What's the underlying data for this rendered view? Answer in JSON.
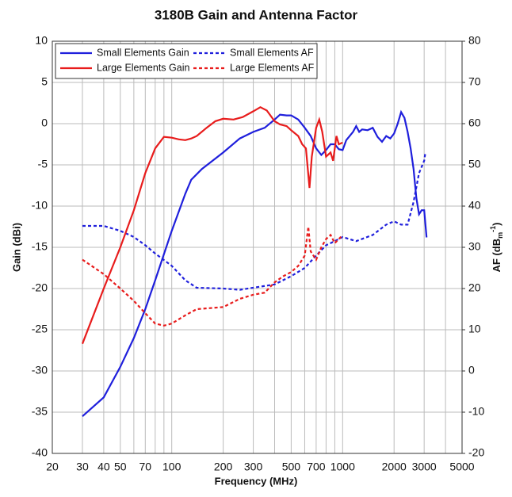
{
  "chart_data": {
    "type": "line",
    "title": "3180B Gain and Antenna Factor",
    "xlabel": "Frequency (MHz)",
    "ylabel": "Gain (dBi)",
    "y2label": {
      "text": "AF (dB",
      "sub": "m",
      "sup": "-1",
      "end": ")"
    },
    "xscale": "log",
    "xlim": [
      20,
      5000
    ],
    "xticks": [
      20,
      30,
      40,
      50,
      70,
      100,
      200,
      300,
      500,
      700,
      1000,
      2000,
      3000,
      5000
    ],
    "xminor_ticks": [
      60,
      80,
      90,
      400,
      600,
      800,
      900,
      4000
    ],
    "ylim": [
      -40,
      10
    ],
    "yticks": [
      -40,
      -35,
      -30,
      -25,
      -20,
      -15,
      -10,
      -5,
      0,
      5,
      10
    ],
    "y2lim": [
      -20,
      80
    ],
    "y2ticks": [
      -20,
      -10,
      0,
      10,
      20,
      30,
      40,
      50,
      60,
      70,
      80
    ],
    "grid": true,
    "legend": "upper left",
    "series": [
      {
        "name": "Small Elements Gain",
        "color": "#1f1fdc",
        "dash": false,
        "axis": "y",
        "x": [
          30,
          40,
          50,
          60,
          70,
          80,
          100,
          120,
          130,
          150,
          200,
          250,
          300,
          350,
          400,
          430,
          470,
          500,
          550,
          600,
          650,
          700,
          750,
          800,
          850,
          900,
          950,
          1000,
          1050,
          1100,
          1150,
          1200,
          1250,
          1300,
          1400,
          1500,
          1600,
          1700,
          1800,
          1900,
          2000,
          2100,
          2200,
          2300,
          2400,
          2500,
          2600,
          2700,
          2800,
          2900,
          3000,
          3100
        ],
        "values": [
          -35.5,
          -33.2,
          -29.5,
          -26,
          -22.5,
          -19,
          -13,
          -8.5,
          -6.8,
          -5.5,
          -3.5,
          -1.8,
          -1,
          -0.5,
          0.5,
          1.1,
          1.0,
          1.0,
          0.5,
          -0.5,
          -1.5,
          -3,
          -3.8,
          -3.2,
          -2.5,
          -2.5,
          -3.1,
          -3.2,
          -2,
          -1.5,
          -1,
          -0.3,
          -1,
          -0.7,
          -0.8,
          -0.5,
          -1.6,
          -2.2,
          -1.5,
          -1.8,
          -1.2,
          0,
          1.4,
          0.7,
          -1,
          -3,
          -5.5,
          -9,
          -11,
          -10.5,
          -10.5,
          -13.8
        ]
      },
      {
        "name": "Small Elements AF",
        "color": "#1f1fdc",
        "dash": true,
        "axis": "y2",
        "x": [
          30,
          40,
          50,
          60,
          70,
          80,
          100,
          120,
          140,
          200,
          250,
          300,
          400,
          500,
          600,
          700,
          800,
          900,
          1000,
          1200,
          1500,
          1800,
          2000,
          2200,
          2400,
          2600,
          2800,
          3000,
          3050
        ],
        "values": [
          35.2,
          35.2,
          34,
          32.5,
          30.5,
          28.5,
          25.5,
          22,
          20.2,
          20,
          19.7,
          20.2,
          21,
          23,
          25,
          28,
          30.5,
          31.5,
          32.5,
          31.5,
          33,
          35.5,
          36.3,
          35.5,
          35.5,
          41,
          48,
          51,
          53
        ]
      },
      {
        "name": "Large Elements Gain",
        "color": "#e81c1c",
        "dash": false,
        "axis": "y",
        "x": [
          30,
          40,
          50,
          60,
          70,
          80,
          90,
          100,
          110,
          120,
          130,
          140,
          160,
          180,
          200,
          230,
          260,
          300,
          330,
          360,
          400,
          430,
          470,
          500,
          550,
          580,
          610,
          640,
          660,
          700,
          730,
          760,
          800,
          850,
          880,
          920,
          950,
          1000
        ],
        "values": [
          -26.7,
          -20,
          -15,
          -10.5,
          -6,
          -3,
          -1.6,
          -1.7,
          -1.9,
          -2,
          -1.8,
          -1.5,
          -0.5,
          0.3,
          0.6,
          0.5,
          0.8,
          1.5,
          2.0,
          1.6,
          0.3,
          -0.1,
          -0.3,
          -0.8,
          -1.5,
          -2.5,
          -3,
          -7.8,
          -4,
          -0.5,
          0.5,
          -1,
          -4,
          -3.5,
          -4.5,
          -1.5,
          -2.5,
          -2.3
        ]
      },
      {
        "name": "Large Elements AF",
        "color": "#e81c1c",
        "dash": true,
        "axis": "y2",
        "x": [
          30,
          40,
          50,
          60,
          70,
          80,
          90,
          100,
          120,
          140,
          200,
          250,
          300,
          350,
          400,
          450,
          500,
          550,
          600,
          630,
          650,
          700,
          750,
          800,
          850,
          900,
          950,
          1000
        ],
        "values": [
          27,
          23.5,
          20,
          17,
          14,
          11.5,
          11,
          11.5,
          13.5,
          15,
          15.5,
          17.5,
          18.5,
          19,
          21.5,
          23,
          24,
          25.5,
          28,
          35,
          29,
          27,
          30,
          32,
          33,
          31,
          32,
          33
        ]
      }
    ]
  }
}
